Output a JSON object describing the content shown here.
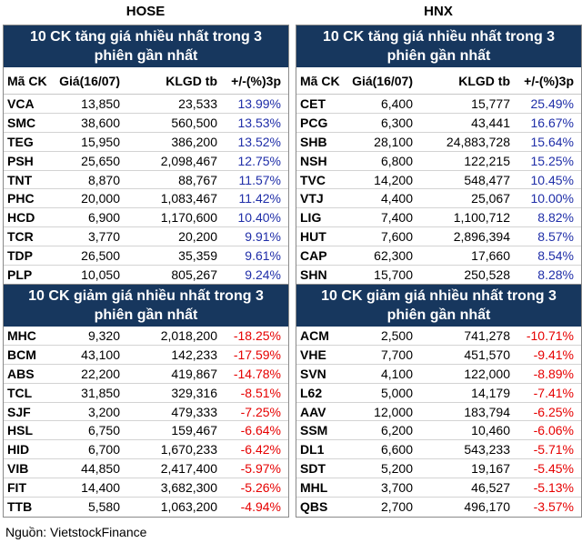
{
  "hose": {
    "title": "HOSE",
    "top_gainers": {
      "header": "10 CK tăng giá nhiều nhất trong 3 phiên gần nhất",
      "columns": [
        "Mã CK",
        "Giá(16/07)",
        "KLGD tb",
        "+/-(%)3p"
      ],
      "rows": [
        {
          "code": "VCA",
          "price": "13,850",
          "vol": "23,533",
          "chg": "13.99%"
        },
        {
          "code": "SMC",
          "price": "38,600",
          "vol": "560,500",
          "chg": "13.53%"
        },
        {
          "code": "TEG",
          "price": "15,950",
          "vol": "386,200",
          "chg": "13.52%"
        },
        {
          "code": "PSH",
          "price": "25,650",
          "vol": "2,098,467",
          "chg": "12.75%"
        },
        {
          "code": "TNT",
          "price": "8,870",
          "vol": "88,767",
          "chg": "11.57%"
        },
        {
          "code": "PHC",
          "price": "20,000",
          "vol": "1,083,467",
          "chg": "11.42%"
        },
        {
          "code": "HCD",
          "price": "6,900",
          "vol": "1,170,600",
          "chg": "10.40%"
        },
        {
          "code": "TCR",
          "price": "3,770",
          "vol": "20,200",
          "chg": "9.91%"
        },
        {
          "code": "TDP",
          "price": "26,500",
          "vol": "35,359",
          "chg": "9.61%"
        },
        {
          "code": "PLP",
          "price": "10,050",
          "vol": "805,267",
          "chg": "9.24%"
        }
      ]
    },
    "top_losers": {
      "header": "10 CK giảm giá nhiều nhất trong 3 phiên gần nhất",
      "rows": [
        {
          "code": "MHC",
          "price": "9,320",
          "vol": "2,018,200",
          "chg": "-18.25%"
        },
        {
          "code": "BCM",
          "price": "43,100",
          "vol": "142,233",
          "chg": "-17.59%"
        },
        {
          "code": "ABS",
          "price": "22,200",
          "vol": "419,867",
          "chg": "-14.78%"
        },
        {
          "code": "TCL",
          "price": "31,850",
          "vol": "329,316",
          "chg": "-8.51%"
        },
        {
          "code": "SJF",
          "price": "3,200",
          "vol": "479,333",
          "chg": "-7.25%"
        },
        {
          "code": "HSL",
          "price": "6,750",
          "vol": "159,467",
          "chg": "-6.64%"
        },
        {
          "code": "HID",
          "price": "6,700",
          "vol": "1,670,233",
          "chg": "-6.42%"
        },
        {
          "code": "VIB",
          "price": "44,850",
          "vol": "2,417,400",
          "chg": "-5.97%"
        },
        {
          "code": "FIT",
          "price": "14,400",
          "vol": "3,682,300",
          "chg": "-5.26%"
        },
        {
          "code": "TTB",
          "price": "5,580",
          "vol": "1,063,200",
          "chg": "-4.94%"
        }
      ]
    }
  },
  "hnx": {
    "title": "HNX",
    "top_gainers": {
      "header": "10 CK tăng giá nhiều nhất trong 3 phiên gần nhất",
      "columns": [
        "Mã CK",
        "Giá(16/07)",
        "KLGD tb",
        "+/-(%)3p"
      ],
      "rows": [
        {
          "code": "CET",
          "price": "6,400",
          "vol": "15,777",
          "chg": "25.49%"
        },
        {
          "code": "PCG",
          "price": "6,300",
          "vol": "43,441",
          "chg": "16.67%"
        },
        {
          "code": "SHB",
          "price": "28,100",
          "vol": "24,883,728",
          "chg": "15.64%"
        },
        {
          "code": "NSH",
          "price": "6,800",
          "vol": "122,215",
          "chg": "15.25%"
        },
        {
          "code": "TVC",
          "price": "14,200",
          "vol": "548,477",
          "chg": "10.45%"
        },
        {
          "code": "VTJ",
          "price": "4,400",
          "vol": "25,067",
          "chg": "10.00%"
        },
        {
          "code": "LIG",
          "price": "7,400",
          "vol": "1,100,712",
          "chg": "8.82%"
        },
        {
          "code": "HUT",
          "price": "7,600",
          "vol": "2,896,394",
          "chg": "8.57%"
        },
        {
          "code": "CAP",
          "price": "62,300",
          "vol": "17,660",
          "chg": "8.54%"
        },
        {
          "code": "SHN",
          "price": "15,700",
          "vol": "250,528",
          "chg": "8.28%"
        }
      ]
    },
    "top_losers": {
      "header": "10 CK giảm giá nhiều nhất trong 3 phiên gần nhất",
      "rows": [
        {
          "code": "ACM",
          "price": "2,500",
          "vol": "741,278",
          "chg": "-10.71%"
        },
        {
          "code": "VHE",
          "price": "7,700",
          "vol": "451,570",
          "chg": "-9.41%"
        },
        {
          "code": "SVN",
          "price": "4,100",
          "vol": "122,000",
          "chg": "-8.89%"
        },
        {
          "code": "L62",
          "price": "5,000",
          "vol": "14,179",
          "chg": "-7.41%"
        },
        {
          "code": "AAV",
          "price": "12,000",
          "vol": "183,794",
          "chg": "-6.25%"
        },
        {
          "code": "SSM",
          "price": "6,200",
          "vol": "10,460",
          "chg": "-6.06%"
        },
        {
          "code": "DL1",
          "price": "6,600",
          "vol": "543,233",
          "chg": "-5.71%"
        },
        {
          "code": "SDT",
          "price": "5,200",
          "vol": "19,167",
          "chg": "-5.45%"
        },
        {
          "code": "MHL",
          "price": "3,700",
          "vol": "46,527",
          "chg": "-5.13%"
        },
        {
          "code": "QBS",
          "price": "2,700",
          "vol": "496,170",
          "chg": "-3.57%"
        }
      ]
    }
  },
  "source": "Nguồn: VietstockFinance",
  "colors": {
    "header_bg": "#17375e",
    "up": "#1f2ea8",
    "down": "#e60000"
  }
}
